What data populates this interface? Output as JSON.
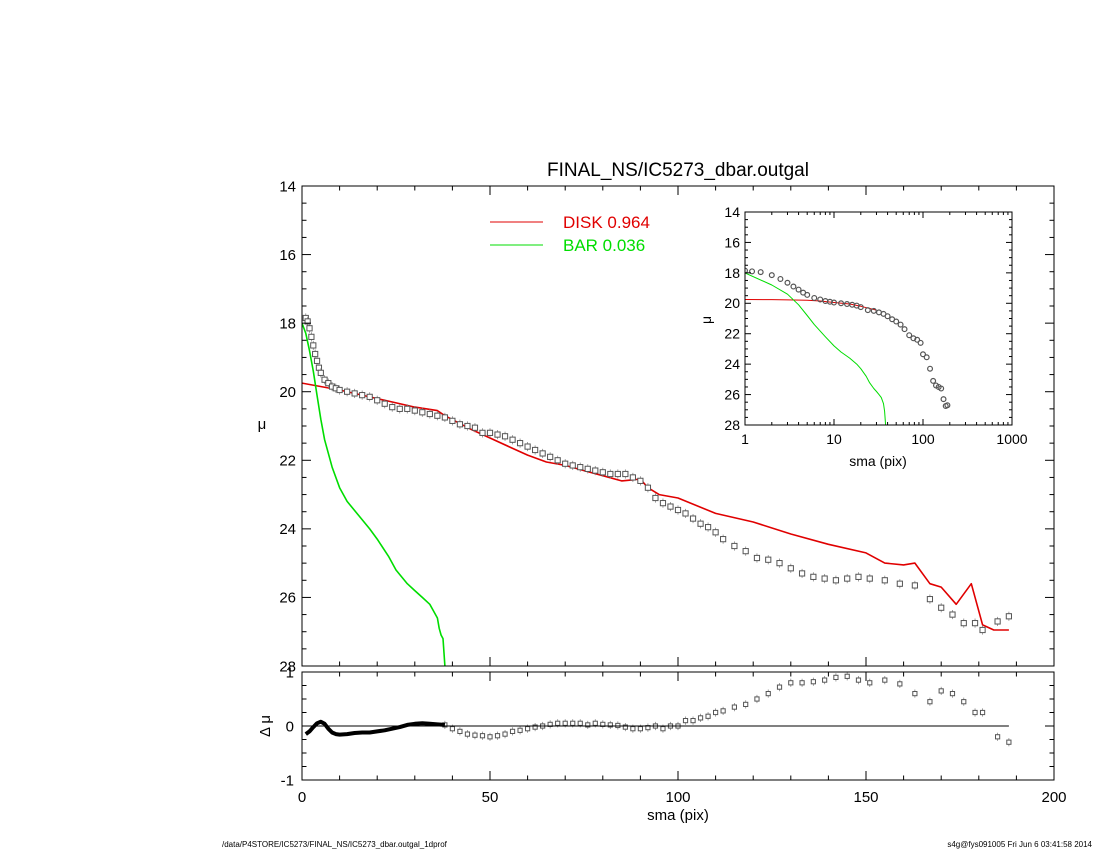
{
  "colors": {
    "disk": "#e00000",
    "bar": "#00dd00",
    "data": "#555555",
    "axis": "#000000"
  },
  "footer": {
    "left": "/data/P4STORE/IC5273/FINAL_NS/IC5273_dbar.outgal_1dprof",
    "right": "s4g@fys091005  Fri Jun  6 03:41:58 2014"
  },
  "chart_data": [
    {
      "type": "scatter",
      "title": "FINAL_NS/IC5273_dbar.outgal",
      "xlabel": "",
      "ylabel": "μ",
      "xlim": [
        0,
        200
      ],
      "ylim": [
        28,
        14
      ],
      "y_inverted": true,
      "yticks": [
        14,
        16,
        18,
        20,
        22,
        24,
        26,
        28
      ],
      "legend": {
        "placement": "top-center",
        "entries": [
          {
            "label": "DISK  0.964",
            "color": "#e00000"
          },
          {
            "label": "BAR  0.036",
            "color": "#00dd00"
          }
        ]
      },
      "series": [
        {
          "name": "DISK",
          "kind": "line",
          "color": "#e00000",
          "x": [
            0,
            10,
            20,
            30,
            36,
            38,
            45,
            50,
            55,
            60,
            65,
            70,
            75,
            80,
            85,
            90,
            92,
            95,
            100,
            110,
            120,
            130,
            140,
            150,
            155,
            160,
            163,
            167,
            170,
            174,
            178,
            181,
            184,
            188
          ],
          "y": [
            19.75,
            19.95,
            20.2,
            20.45,
            20.55,
            20.7,
            21.1,
            21.35,
            21.6,
            21.85,
            22.05,
            22.15,
            22.3,
            22.45,
            22.6,
            22.55,
            22.8,
            23.0,
            23.1,
            23.55,
            23.8,
            24.15,
            24.45,
            24.7,
            25.0,
            25.05,
            25.0,
            25.6,
            25.7,
            26.2,
            25.6,
            26.8,
            26.95,
            26.95
          ]
        },
        {
          "name": "BAR",
          "kind": "line",
          "color": "#00dd00",
          "x": [
            0,
            1,
            2,
            3,
            4,
            5,
            6,
            8,
            10,
            12,
            15,
            18,
            20,
            23,
            25,
            28,
            30,
            32,
            34,
            35,
            36,
            36.5,
            37,
            37.5,
            38
          ],
          "y": [
            18.0,
            18.3,
            18.8,
            19.4,
            20.1,
            20.8,
            21.4,
            22.2,
            22.8,
            23.2,
            23.6,
            24.0,
            24.3,
            24.8,
            25.2,
            25.6,
            25.8,
            26.0,
            26.2,
            26.4,
            26.6,
            26.9,
            27.1,
            27.2,
            28.0
          ]
        },
        {
          "name": "",
          "kind": "points",
          "color": "#555555",
          "x": [
            1,
            1.5,
            2,
            2.5,
            3,
            3.5,
            4,
            4.5,
            5,
            6,
            7,
            8,
            9,
            10,
            12,
            14,
            16,
            18,
            20,
            22,
            24,
            26,
            28,
            30,
            32,
            34,
            36,
            38,
            40,
            42,
            44,
            46,
            48,
            50,
            52,
            54,
            56,
            58,
            60,
            62,
            64,
            66,
            68,
            70,
            72,
            74,
            76,
            78,
            80,
            82,
            84,
            86,
            88,
            90,
            92,
            94,
            96,
            98,
            100,
            102,
            104,
            106,
            108,
            110,
            112,
            115,
            118,
            121,
            124,
            127,
            130,
            133,
            136,
            139,
            142,
            145,
            148,
            151,
            155,
            159,
            163,
            167,
            170,
            173,
            176,
            179,
            181,
            185,
            188
          ],
          "y": [
            17.85,
            17.95,
            18.15,
            18.4,
            18.65,
            18.9,
            19.1,
            19.3,
            19.45,
            19.65,
            19.75,
            19.85,
            19.9,
            19.95,
            20.0,
            20.05,
            20.1,
            20.15,
            20.25,
            20.35,
            20.45,
            20.5,
            20.5,
            20.55,
            20.6,
            20.65,
            20.7,
            20.75,
            20.85,
            20.95,
            21.0,
            21.05,
            21.2,
            21.2,
            21.25,
            21.3,
            21.4,
            21.5,
            21.6,
            21.7,
            21.8,
            21.9,
            22.0,
            22.1,
            22.15,
            22.2,
            22.25,
            22.3,
            22.35,
            22.4,
            22.4,
            22.4,
            22.5,
            22.6,
            22.8,
            23.1,
            23.25,
            23.35,
            23.45,
            23.55,
            23.7,
            23.85,
            23.95,
            24.1,
            24.3,
            24.5,
            24.65,
            24.85,
            24.9,
            25.0,
            25.15,
            25.3,
            25.4,
            25.45,
            25.5,
            25.45,
            25.4,
            25.45,
            25.5,
            25.6,
            25.65,
            26.05,
            26.3,
            26.5,
            26.75,
            26.75,
            26.95,
            26.7,
            26.55
          ]
        }
      ]
    },
    {
      "type": "scatter",
      "title": "",
      "xlabel": "sma (pix)",
      "ylabel": "Δ μ",
      "xlim": [
        0,
        200
      ],
      "ylim": [
        -1,
        1
      ],
      "xticks": [
        0,
        50,
        100,
        150,
        200
      ],
      "yticks": [
        -1,
        0,
        1
      ],
      "series": [
        {
          "name": "",
          "kind": "points",
          "color": "#555555",
          "x": [
            38,
            40,
            42,
            44,
            46,
            48,
            50,
            52,
            54,
            56,
            58,
            60,
            62,
            64,
            66,
            68,
            70,
            72,
            74,
            76,
            78,
            80,
            82,
            84,
            86,
            88,
            90,
            92,
            94,
            96,
            98,
            100,
            102,
            104,
            106,
            108,
            110,
            112,
            115,
            118,
            121,
            124,
            127,
            130,
            133,
            136,
            139,
            142,
            145,
            148,
            151,
            155,
            159,
            163,
            167,
            170,
            173,
            176,
            179,
            181,
            185,
            188
          ],
          "y": [
            0.02,
            -0.05,
            -0.1,
            -0.15,
            -0.17,
            -0.18,
            -0.2,
            -0.18,
            -0.15,
            -0.1,
            -0.08,
            -0.05,
            -0.02,
            0.0,
            0.03,
            0.05,
            0.05,
            0.05,
            0.05,
            0.02,
            0.05,
            0.03,
            0.02,
            0.01,
            -0.02,
            -0.05,
            -0.05,
            -0.03,
            0.0,
            -0.05,
            0.0,
            0.0,
            0.1,
            0.1,
            0.15,
            0.18,
            0.25,
            0.28,
            0.35,
            0.4,
            0.5,
            0.6,
            0.72,
            0.8,
            0.8,
            0.82,
            0.85,
            0.9,
            0.92,
            0.85,
            0.8,
            0.85,
            0.78,
            0.6,
            0.45,
            0.65,
            0.6,
            0.45,
            0.25,
            0.25,
            -0.2,
            -0.3
          ]
        },
        {
          "name": "",
          "kind": "thick-line",
          "color": "#000000",
          "x": [
            1,
            2,
            3,
            4,
            5,
            6,
            7,
            8,
            9,
            10,
            12,
            14,
            16,
            18,
            20,
            22,
            24,
            26,
            28,
            30,
            32,
            34,
            36,
            38
          ],
          "y": [
            -0.15,
            -0.1,
            -0.02,
            0.05,
            0.08,
            0.04,
            -0.05,
            -0.12,
            -0.15,
            -0.16,
            -0.15,
            -0.13,
            -0.12,
            -0.12,
            -0.1,
            -0.08,
            -0.05,
            -0.02,
            0.02,
            0.04,
            0.05,
            0.04,
            0.03,
            0.02
          ]
        },
        {
          "name": "",
          "kind": "zero-line",
          "color": "#000000",
          "x": [
            0,
            188
          ],
          "y": [
            0,
            0
          ]
        }
      ]
    },
    {
      "type": "scatter",
      "title": "",
      "xlabel": "sma (pix)",
      "ylabel": "μ",
      "x_scale": "log",
      "xlim": [
        1,
        1000
      ],
      "ylim": [
        28,
        14
      ],
      "y_inverted": true,
      "xticks": [
        1,
        10,
        100,
        1000
      ],
      "yticks": [
        14,
        16,
        18,
        20,
        22,
        24,
        26,
        28
      ],
      "series": [
        {
          "name": "DISK",
          "kind": "line",
          "color": "#e00000",
          "x": [
            1,
            2,
            3,
            5,
            7,
            10,
            15,
            20,
            30
          ],
          "y": [
            19.75,
            19.76,
            19.78,
            19.8,
            19.85,
            19.95,
            20.05,
            20.2,
            20.45
          ]
        },
        {
          "name": "BAR",
          "kind": "line",
          "color": "#00dd00",
          "x": [
            1,
            2,
            3,
            4,
            5,
            6,
            8,
            10,
            12,
            15,
            18,
            20,
            23,
            25,
            28,
            30,
            32,
            34,
            36,
            37,
            38
          ],
          "y": [
            18.0,
            18.8,
            19.4,
            20.1,
            20.8,
            21.4,
            22.2,
            22.8,
            23.2,
            23.6,
            24.0,
            24.3,
            24.8,
            25.2,
            25.6,
            25.8,
            26.0,
            26.2,
            26.6,
            27.1,
            28.0
          ]
        },
        {
          "name": "",
          "kind": "points",
          "color": "#555555",
          "x": [
            1,
            1.2,
            1.5,
            2,
            2.5,
            3,
            3.5,
            4,
            4.5,
            5,
            6,
            7,
            8,
            9,
            10,
            12,
            14,
            16,
            18,
            20,
            24,
            28,
            32,
            36,
            40,
            45,
            50,
            56,
            62,
            70,
            78,
            86,
            94,
            100,
            110,
            120,
            130,
            140,
            150,
            160,
            170,
            180,
            188
          ],
          "y": [
            17.85,
            17.9,
            17.95,
            18.15,
            18.4,
            18.65,
            18.9,
            19.1,
            19.3,
            19.45,
            19.65,
            19.75,
            19.85,
            19.9,
            19.95,
            20.0,
            20.05,
            20.1,
            20.15,
            20.25,
            20.45,
            20.5,
            20.6,
            20.7,
            20.85,
            21.05,
            21.2,
            21.4,
            21.7,
            22.1,
            22.3,
            22.4,
            22.6,
            23.35,
            23.55,
            24.3,
            25.1,
            25.4,
            25.5,
            25.6,
            26.3,
            26.75,
            26.7
          ]
        }
      ]
    }
  ]
}
